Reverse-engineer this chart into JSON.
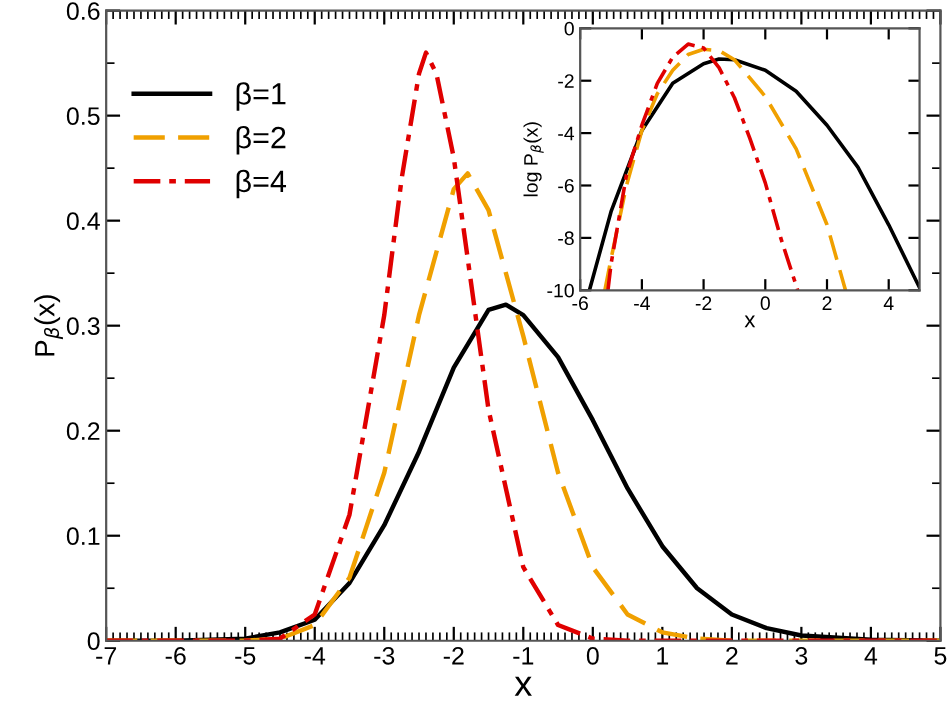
{
  "chart_data": [
    {
      "type": "line",
      "xlabel": "x",
      "ylabel": "P$_{β}$(x)",
      "xlim": [
        -7,
        5
      ],
      "ylim": [
        0,
        0.6
      ],
      "xticks": [
        -7,
        -6,
        -5,
        -4,
        -3,
        -2,
        -1,
        0,
        1,
        2,
        3,
        4,
        5
      ],
      "yticks": [
        0,
        0.1,
        0.2,
        0.3,
        0.4,
        0.5,
        0.6
      ],
      "legend": "top left",
      "grid": false,
      "series": [
        {
          "name": "β=1",
          "color": "#000000",
          "line_style": "solid",
          "x": [
            -7,
            -6,
            -5,
            -4.5,
            -4,
            -3.5,
            -3,
            -2.5,
            -2,
            -1.5,
            -1.25,
            -1,
            -0.5,
            0,
            0.5,
            1,
            1.5,
            2,
            2.5,
            3,
            4,
            5
          ],
          "values": [
            0,
            0,
            0.002,
            0.008,
            0.02,
            0.055,
            0.11,
            0.18,
            0.26,
            0.315,
            0.32,
            0.31,
            0.27,
            0.21,
            0.145,
            0.09,
            0.05,
            0.025,
            0.012,
            0.005,
            0.001,
            0
          ]
        },
        {
          "name": "β=2",
          "color": "#f0a000",
          "line_style": "dashed",
          "x": [
            -7,
            -6,
            -5,
            -4.5,
            -4,
            -3.5,
            -3,
            -2.5,
            -2,
            -1.8,
            -1.5,
            -1,
            -0.5,
            0,
            0.5,
            1,
            1.5,
            2,
            5
          ],
          "values": [
            0,
            0,
            0,
            0.002,
            0.015,
            0.06,
            0.16,
            0.31,
            0.43,
            0.445,
            0.41,
            0.29,
            0.16,
            0.07,
            0.025,
            0.008,
            0.002,
            0,
            0
          ]
        },
        {
          "name": "β=4",
          "color": "#e00000",
          "line_style": "dashdot",
          "x": [
            -7,
            -6,
            -5,
            -4.5,
            -4,
            -3.5,
            -3,
            -2.75,
            -2.5,
            -2.4,
            -2.25,
            -2,
            -1.75,
            -1.5,
            -1,
            -0.5,
            0,
            0.5,
            5
          ],
          "values": [
            0,
            0,
            0,
            0.002,
            0.025,
            0.12,
            0.31,
            0.44,
            0.54,
            0.56,
            0.54,
            0.46,
            0.34,
            0.22,
            0.07,
            0.015,
            0.002,
            0,
            0
          ]
        }
      ]
    },
    {
      "type": "line",
      "xlabel": "x",
      "ylabel": "log P$_{β}$(x)",
      "xlim": [
        -6,
        5
      ],
      "ylim": [
        -10,
        0
      ],
      "xticks": [
        -6,
        -4,
        -2,
        0,
        2,
        4
      ],
      "yticks": [
        -10,
        -8,
        -6,
        -4,
        -2,
        0
      ],
      "grid": false,
      "series": [
        {
          "color": "#000000",
          "line_style": "solid",
          "x": [
            -5.7,
            -5,
            -4,
            -3,
            -2,
            -1.5,
            -1,
            0,
            1,
            2,
            3,
            4,
            5
          ],
          "values": [
            -10,
            -7,
            -3.9,
            -2.1,
            -1.35,
            -1.17,
            -1.2,
            -1.6,
            -2.4,
            -3.7,
            -5.3,
            -7.5,
            -9.9
          ]
        },
        {
          "color": "#f0a000",
          "line_style": "dashed",
          "x": [
            -5.2,
            -5,
            -4.5,
            -4,
            -3.5,
            -3,
            -2.5,
            -2,
            -1.5,
            -1,
            0,
            1,
            2,
            2.6
          ],
          "values": [
            -10,
            -8.8,
            -6,
            -3.9,
            -2.5,
            -1.6,
            -1.0,
            -0.8,
            -0.85,
            -1.2,
            -2.6,
            -4.6,
            -7.5,
            -10
          ]
        },
        {
          "color": "#e00000",
          "line_style": "dashdot",
          "x": [
            -5.1,
            -5,
            -4.5,
            -4,
            -3.5,
            -3,
            -2.5,
            -2,
            -1.5,
            -1,
            -0.5,
            0,
            0.5,
            1.05
          ],
          "values": [
            -10,
            -9,
            -5.6,
            -3.7,
            -2.1,
            -1.1,
            -0.6,
            -0.75,
            -1.5,
            -2.65,
            -4.2,
            -5.9,
            -8,
            -10
          ]
        }
      ]
    }
  ]
}
